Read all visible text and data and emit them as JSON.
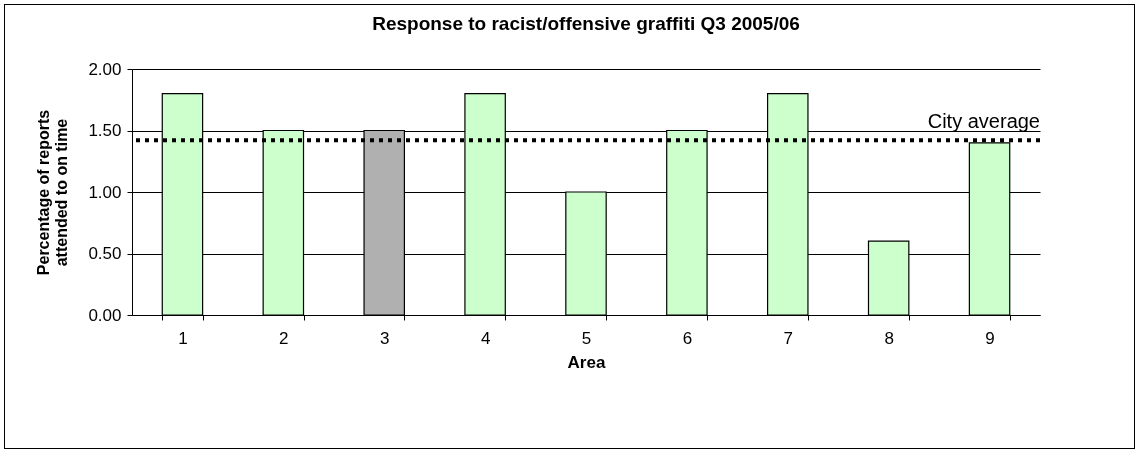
{
  "chart_data": {
    "type": "bar",
    "title": "Response to racist/offensive graffiti Q3 2005/06",
    "xlabel": "Area",
    "ylabel": "Percentage of reports\nattended to on time",
    "categories": [
      "1",
      "2",
      "3",
      "4",
      "5",
      "6",
      "7",
      "8",
      "9"
    ],
    "values": [
      1.8,
      1.5,
      1.5,
      1.8,
      1.0,
      1.5,
      1.8,
      0.6,
      1.4
    ],
    "colors": [
      "#ccffcc",
      "#ccffcc",
      "#b0b0b0",
      "#ccffcc",
      "#ccffcc",
      "#ccffcc",
      "#ccffcc",
      "#ccffcc",
      "#ccffcc"
    ],
    "ylim": [
      0,
      2
    ],
    "yticks": [
      {
        "value": 0,
        "label": "0.00"
      },
      {
        "value": 0.5,
        "label": "0.50"
      },
      {
        "value": 1,
        "label": "1.00"
      },
      {
        "value": 1.5,
        "label": "1.50"
      },
      {
        "value": 2,
        "label": "2.00"
      }
    ],
    "ref_lines": [
      {
        "axis": "y",
        "value": 1.42,
        "label": "City average",
        "color": "#000000",
        "line_style": "dotted"
      }
    ],
    "grid": "y",
    "legend": false
  }
}
